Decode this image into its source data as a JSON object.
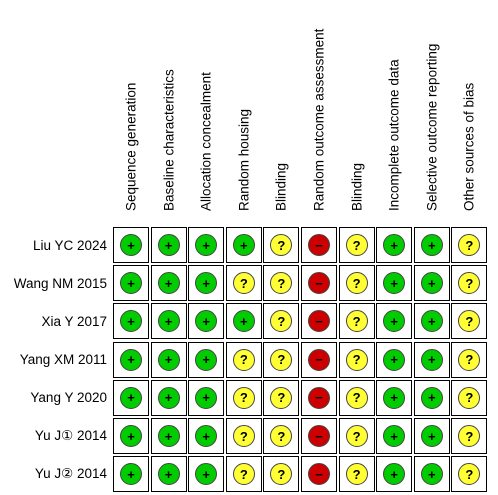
{
  "domains": [
    "Sequence generation",
    "Baseline characteristics",
    "Allocation concealment",
    "Random housing",
    "Blinding",
    "Random outcome assessment",
    "Blinding",
    "Incomplete outcome data",
    "Selective outcome reporting",
    "Other sources of bias"
  ],
  "symbols": {
    "low": "+",
    "unclear": "?",
    "high": "−"
  },
  "colors": {
    "low": "#00cc00",
    "unclear": "#ffff33",
    "high": "#cc0000"
  },
  "studies": [
    {
      "label": "Liu YC 2024",
      "ratings": [
        "low",
        "low",
        "low",
        "low",
        "unclear",
        "high",
        "unclear",
        "low",
        "low",
        "unclear"
      ]
    },
    {
      "label": "Wang NM 2015",
      "ratings": [
        "low",
        "low",
        "low",
        "unclear",
        "unclear",
        "high",
        "unclear",
        "low",
        "low",
        "unclear"
      ]
    },
    {
      "label": "Xia Y 2017",
      "ratings": [
        "low",
        "low",
        "low",
        "low",
        "unclear",
        "high",
        "unclear",
        "low",
        "low",
        "unclear"
      ]
    },
    {
      "label": "Yang XM 2011",
      "ratings": [
        "low",
        "low",
        "low",
        "unclear",
        "unclear",
        "high",
        "unclear",
        "low",
        "low",
        "unclear"
      ]
    },
    {
      "label": "Yang Y 2020",
      "ratings": [
        "low",
        "low",
        "low",
        "unclear",
        "unclear",
        "high",
        "unclear",
        "low",
        "low",
        "unclear"
      ]
    },
    {
      "label": "Yu J① 2014",
      "ratings": [
        "low",
        "low",
        "low",
        "unclear",
        "unclear",
        "high",
        "unclear",
        "low",
        "low",
        "unclear"
      ]
    },
    {
      "label": "Yu J② 2014",
      "ratings": [
        "low",
        "low",
        "low",
        "unclear",
        "unclear",
        "high",
        "unclear",
        "low",
        "low",
        "unclear"
      ]
    }
  ]
}
